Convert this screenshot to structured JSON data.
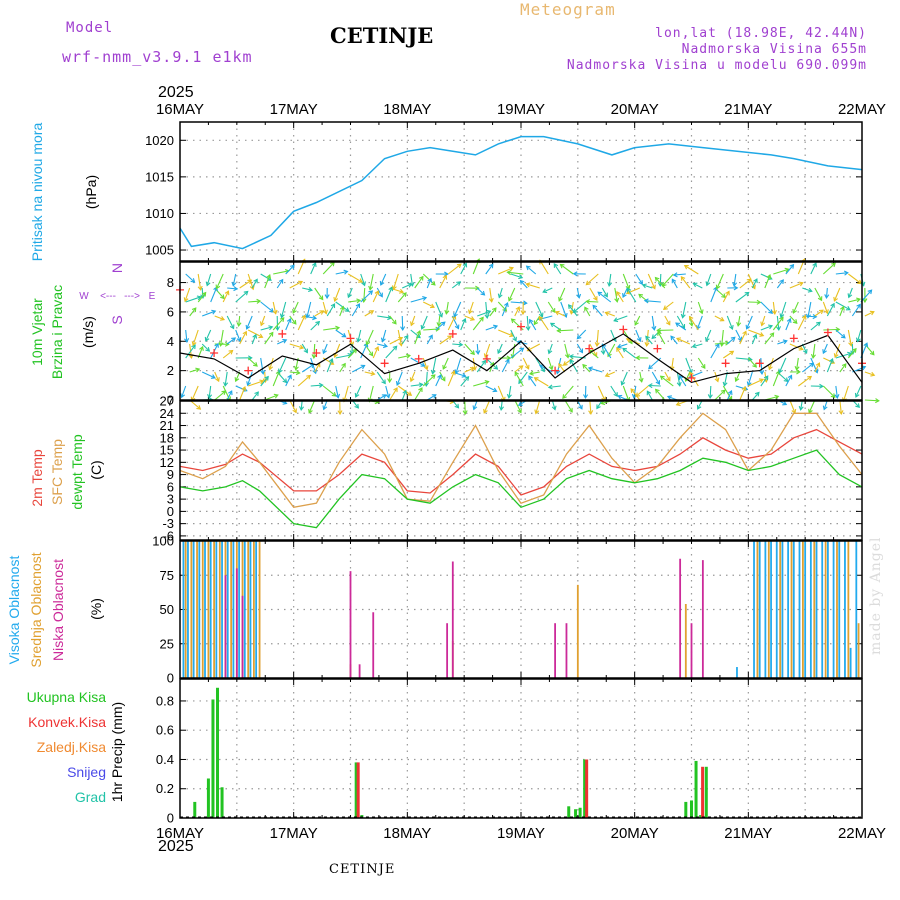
{
  "header": {
    "model_label": "Model",
    "model_name": "wrf-nmm_v3.9.1 e1km",
    "title": "CETINJE",
    "meteogram_label": "Meteogram",
    "lonlat": "lon,lat (18.98E, 42.44N)",
    "elevation": "Nadmorska Visina 655m",
    "model_elevation": "Nadmorska Visina u modelu 690.099m",
    "year_top": "2025",
    "year_bottom": "2025",
    "footer_station": "CETINJE",
    "watermark": "made by Angel"
  },
  "colors": {
    "pressure": "#1fa8e6",
    "wind_speed": "#000000",
    "wind_gust": "#ff3333",
    "t2m": "#e8463c",
    "tsfc": "#dca04c",
    "dewpt": "#22c322",
    "cloud_high": "#22aaee",
    "cloud_mid": "#e0a030",
    "cloud_low": "#cc2a99",
    "precip_total": "#22c322",
    "precip_conv": "#ee3333",
    "label_purple": "#a040d0",
    "label_orange": "#e8b870"
  },
  "chart_data": [
    {
      "id": "pressure",
      "type": "line",
      "ylabel_lines": [
        "Pritisak na nivou mora",
        "(hPa)"
      ],
      "yticks": [
        1005,
        1010,
        1015,
        1020
      ],
      "ylim": [
        1003.5,
        1022.5
      ],
      "xlim": [
        0,
        6
      ],
      "grid": true,
      "series": [
        {
          "x": [
            0,
            0.1,
            0.3,
            0.55,
            0.8,
            1.0,
            1.2,
            1.6,
            1.8,
            2.0,
            2.2,
            2.4,
            2.6,
            2.8,
            3.0,
            3.2,
            3.5,
            3.8,
            4.0,
            4.3,
            4.6,
            4.9,
            5.2,
            5.4,
            5.7,
            6.0
          ],
          "y": [
            1008.0,
            1005.5,
            1006.0,
            1005.2,
            1007.0,
            1010.3,
            1011.5,
            1014.5,
            1017.5,
            1018.5,
            1019.0,
            1018.5,
            1018.0,
            1019.5,
            1020.5,
            1020.5,
            1019.5,
            1018.0,
            1019.0,
            1019.5,
            1019.0,
            1018.5,
            1018.0,
            1017.5,
            1016.5,
            1016.0
          ]
        }
      ]
    },
    {
      "id": "wind",
      "type": "line",
      "ylabel_lines": [
        "10m Vjetar",
        "Brzina i Pravac",
        "(m/s)"
      ],
      "compass_labels": [
        "W",
        "<---",
        "--->",
        "E",
        "S",
        "N"
      ],
      "yticks": [
        0,
        2,
        4,
        6,
        8
      ],
      "ylim": [
        0,
        9.4
      ],
      "xlim": [
        0,
        6
      ],
      "grid": true,
      "series": [
        {
          "name": "speed",
          "x": [
            0,
            0.3,
            0.6,
            0.9,
            1.2,
            1.5,
            1.8,
            2.1,
            2.4,
            2.7,
            3.0,
            3.3,
            3.6,
            3.9,
            4.2,
            4.5,
            4.8,
            5.1,
            5.4,
            5.7,
            6.0
          ],
          "y": [
            3.2,
            2.8,
            1.5,
            3.0,
            2.4,
            3.8,
            1.8,
            2.5,
            3.4,
            2.0,
            4.0,
            1.5,
            3.2,
            4.5,
            2.8,
            1.2,
            1.8,
            2.0,
            3.5,
            4.4,
            1.2
          ]
        },
        {
          "name": "gust",
          "x": [
            0,
            0.3,
            0.6,
            0.9,
            1.2,
            1.5,
            1.8,
            2.1,
            2.4,
            2.7,
            3.0,
            3.3,
            3.6,
            3.9,
            4.2,
            4.5,
            4.8,
            5.1,
            5.4,
            5.7,
            6.0
          ],
          "y": [
            7.5,
            3.2,
            2.0,
            4.5,
            3.2,
            4.2,
            2.5,
            2.8,
            4.5,
            2.8,
            5.0,
            2.0,
            3.5,
            4.8,
            3.5,
            1.5,
            2.5,
            2.5,
            4.2,
            4.6,
            2.5
          ]
        }
      ]
    },
    {
      "id": "temperature",
      "type": "line",
      "ylabel_lines": [
        "2m Temp",
        "SFC Temp",
        "dewpt Temp",
        "(C)"
      ],
      "yticks": [
        -6,
        -3,
        0,
        3,
        6,
        9,
        12,
        15,
        18,
        21,
        24,
        27
      ],
      "ylim": [
        -7,
        27
      ],
      "xlim": [
        0,
        6
      ],
      "grid": true,
      "series": [
        {
          "name": "2m Temp",
          "x": [
            0,
            0.2,
            0.4,
            0.55,
            0.7,
            1.0,
            1.2,
            1.4,
            1.6,
            1.8,
            2.0,
            2.2,
            2.4,
            2.6,
            2.8,
            3.0,
            3.2,
            3.4,
            3.6,
            3.8,
            4.0,
            4.2,
            4.4,
            4.6,
            4.8,
            5.0,
            5.2,
            5.4,
            5.6,
            5.8,
            6.0
          ],
          "y": [
            11,
            10,
            11.5,
            14,
            12,
            5,
            5,
            9,
            14,
            12,
            5,
            4.5,
            9,
            14,
            11,
            4,
            6,
            11,
            14,
            11,
            10,
            11,
            14,
            18,
            15,
            13,
            14,
            18,
            20,
            17,
            14
          ]
        },
        {
          "name": "SFC Temp",
          "x": [
            0,
            0.2,
            0.4,
            0.55,
            0.7,
            1.0,
            1.2,
            1.4,
            1.6,
            1.8,
            2.0,
            2.2,
            2.4,
            2.6,
            2.8,
            3.0,
            3.2,
            3.4,
            3.6,
            3.8,
            4.0,
            4.2,
            4.4,
            4.6,
            4.8,
            5.0,
            5.2,
            5.4,
            5.6,
            5.8,
            6.0
          ],
          "y": [
            10,
            8,
            11,
            17,
            12,
            1,
            2,
            12,
            20,
            14,
            3,
            2.5,
            12,
            21,
            10,
            2,
            4,
            14,
            21,
            13,
            7,
            11,
            18,
            24,
            20,
            10,
            15,
            24,
            24,
            16,
            9
          ]
        },
        {
          "name": "dewpt Temp",
          "x": [
            0,
            0.2,
            0.4,
            0.55,
            0.7,
            1.0,
            1.2,
            1.4,
            1.6,
            1.8,
            2.0,
            2.2,
            2.4,
            2.6,
            2.8,
            3.0,
            3.2,
            3.4,
            3.6,
            3.8,
            4.0,
            4.2,
            4.4,
            4.6,
            4.8,
            5.0,
            5.2,
            5.4,
            5.6,
            5.8,
            6.0
          ],
          "y": [
            6,
            5,
            6,
            7.5,
            5,
            -3,
            -4,
            3,
            9,
            8,
            3,
            2,
            6,
            9,
            7,
            1,
            3,
            8,
            10,
            8,
            7,
            8,
            10,
            13,
            12,
            10,
            11,
            13,
            15,
            9,
            6
          ]
        }
      ]
    },
    {
      "id": "cloud",
      "type": "bar",
      "ylabel_lines": [
        "Visoka Oblacnost",
        "Srednja Oblacnost",
        "Niska Oblacnost",
        "(%)"
      ],
      "yticks": [
        0,
        25,
        50,
        75,
        100
      ],
      "ylim": [
        0,
        100
      ],
      "xlim": [
        0,
        6
      ],
      "grid": true,
      "series": [
        {
          "name": "Visoka Oblacnost",
          "x": [
            0.03,
            0.07,
            0.12,
            0.17,
            0.22,
            0.27,
            0.32,
            0.37,
            0.42,
            0.47,
            0.52,
            0.57,
            0.62,
            0.67,
            4.9,
            5.05,
            5.1,
            5.15,
            5.2,
            5.25,
            5.3,
            5.35,
            5.4,
            5.45,
            5.5,
            5.55,
            5.6,
            5.65,
            5.7,
            5.75,
            5.8,
            5.85,
            5.9,
            5.95
          ],
          "y": [
            100,
            100,
            100,
            100,
            100,
            100,
            100,
            100,
            100,
            100,
            100,
            100,
            100,
            100,
            8,
            100,
            100,
            100,
            100,
            100,
            100,
            100,
            100,
            100,
            100,
            100,
            100,
            100,
            100,
            100,
            100,
            100,
            22,
            100
          ]
        },
        {
          "name": "Srednja Oblacnost",
          "x": [
            0.05,
            0.1,
            0.15,
            0.2,
            0.25,
            0.3,
            0.35,
            0.4,
            0.45,
            0.5,
            0.55,
            0.6,
            0.65,
            0.7,
            1.5,
            2.4,
            3.5,
            4.45,
            5.08,
            5.18,
            5.28,
            5.38,
            5.48,
            5.58,
            5.68,
            5.78,
            5.88,
            5.97
          ],
          "y": [
            100,
            100,
            100,
            100,
            100,
            100,
            100,
            100,
            100,
            100,
            100,
            100,
            100,
            100,
            10,
            27,
            68,
            54,
            100,
            100,
            100,
            100,
            100,
            100,
            100,
            100,
            100,
            40
          ]
        },
        {
          "name": "Niska Oblacnost",
          "x": [
            0.4,
            0.5,
            0.55,
            1.5,
            1.58,
            1.7,
            2.35,
            2.4,
            3.3,
            3.4,
            4.4,
            4.5,
            4.6
          ],
          "y": [
            75,
            80,
            60,
            78,
            10,
            48,
            40,
            85,
            40,
            40,
            87,
            40,
            86
          ]
        }
      ]
    },
    {
      "id": "precip",
      "type": "bar",
      "ylabel_lines": [
        "1hr Precip (mm)"
      ],
      "legend": [
        "Ukupna Kisa",
        "Konvek.Kisa",
        "Zaledj.Kisa",
        "Snijeg",
        "Grad"
      ],
      "legend_colors": [
        "#22c322",
        "#ee3333",
        "#f08a30",
        "#4a4ae8",
        "#22c3a8"
      ],
      "yticks": [
        0,
        0.2,
        0.4,
        0.6,
        0.8
      ],
      "ylim": [
        0,
        0.95
      ],
      "xlim": [
        0,
        6
      ],
      "grid": true,
      "series": [
        {
          "name": "Ukupna Kisa",
          "x": [
            0.13,
            0.25,
            0.29,
            0.33,
            0.37,
            1.55,
            1.6,
            3.42,
            3.48,
            3.52,
            3.56,
            4.45,
            4.5,
            4.54,
            4.58,
            4.63
          ],
          "y": [
            0.11,
            0.27,
            0.81,
            0.89,
            0.21,
            0.38,
            0.02,
            0.08,
            0.06,
            0.07,
            0.4,
            0.11,
            0.12,
            0.39,
            0.02,
            0.35
          ]
        },
        {
          "name": "Konvek.Kisa",
          "x": [
            1.55,
            3.56,
            4.58
          ],
          "y": [
            0.38,
            0.4,
            0.35
          ]
        }
      ]
    }
  ],
  "x_axis": {
    "day_positions": [
      0,
      1,
      2,
      3,
      4,
      5,
      6
    ],
    "day_labels": [
      "16MAY",
      "17MAY",
      "18MAY",
      "19MAY",
      "20MAY",
      "21MAY",
      "22MAY"
    ]
  }
}
